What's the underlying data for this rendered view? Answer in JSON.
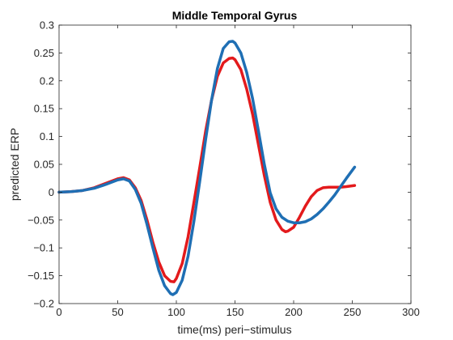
{
  "chart_data": {
    "type": "line",
    "title": "Middle Temporal Gyrus",
    "xlabel": "time(ms) peri−stimulus",
    "ylabel": "predicted ERP",
    "xlim": [
      0,
      300
    ],
    "ylim": [
      -0.2,
      0.3
    ],
    "xticks": [
      0,
      50,
      100,
      150,
      200,
      250,
      300
    ],
    "yticks": [
      -0.2,
      -0.15,
      -0.1,
      -0.05,
      0,
      0.05,
      0.1,
      0.15,
      0.2,
      0.25,
      0.3
    ],
    "grid": false,
    "legend": "none",
    "series": [
      {
        "color": "#e31a1c",
        "x": [
          0,
          10,
          20,
          30,
          40,
          50,
          55,
          60,
          65,
          70,
          75,
          80,
          85,
          90,
          95,
          98,
          100,
          105,
          110,
          115,
          120,
          125,
          130,
          135,
          140,
          145,
          148,
          150,
          155,
          160,
          165,
          170,
          175,
          180,
          185,
          190,
          193,
          195,
          200,
          205,
          210,
          215,
          220,
          225,
          230,
          235,
          240,
          245,
          252
        ],
        "y": [
          0,
          0.001,
          0.003,
          0.008,
          0.016,
          0.024,
          0.026,
          0.022,
          0.008,
          -0.015,
          -0.05,
          -0.09,
          -0.125,
          -0.15,
          -0.16,
          -0.161,
          -0.155,
          -0.128,
          -0.08,
          -0.018,
          0.045,
          0.11,
          0.165,
          0.208,
          0.232,
          0.24,
          0.241,
          0.238,
          0.22,
          0.185,
          0.14,
          0.085,
          0.03,
          -0.018,
          -0.05,
          -0.067,
          -0.071,
          -0.07,
          -0.063,
          -0.045,
          -0.025,
          -0.008,
          0.003,
          0.008,
          0.009,
          0.009,
          0.009,
          0.01,
          0.012
        ]
      },
      {
        "color": "#1f6fb4",
        "x": [
          0,
          10,
          20,
          30,
          40,
          50,
          55,
          60,
          65,
          70,
          75,
          80,
          85,
          90,
          95,
          97,
          100,
          105,
          110,
          115,
          120,
          125,
          130,
          135,
          140,
          145,
          148,
          150,
          155,
          160,
          165,
          170,
          175,
          180,
          185,
          190,
          195,
          200,
          205,
          210,
          215,
          220,
          225,
          230,
          235,
          240,
          245,
          252
        ],
        "y": [
          0,
          0.001,
          0.003,
          0.007,
          0.014,
          0.022,
          0.024,
          0.02,
          0.005,
          -0.02,
          -0.058,
          -0.1,
          -0.14,
          -0.168,
          -0.182,
          -0.184,
          -0.18,
          -0.158,
          -0.115,
          -0.052,
          0.02,
          0.095,
          0.165,
          0.222,
          0.258,
          0.27,
          0.271,
          0.268,
          0.25,
          0.215,
          0.168,
          0.11,
          0.05,
          -0.001,
          -0.03,
          -0.045,
          -0.052,
          -0.055,
          -0.055,
          -0.053,
          -0.048,
          -0.04,
          -0.03,
          -0.018,
          -0.005,
          0.01,
          0.025,
          0.045
        ]
      }
    ]
  }
}
